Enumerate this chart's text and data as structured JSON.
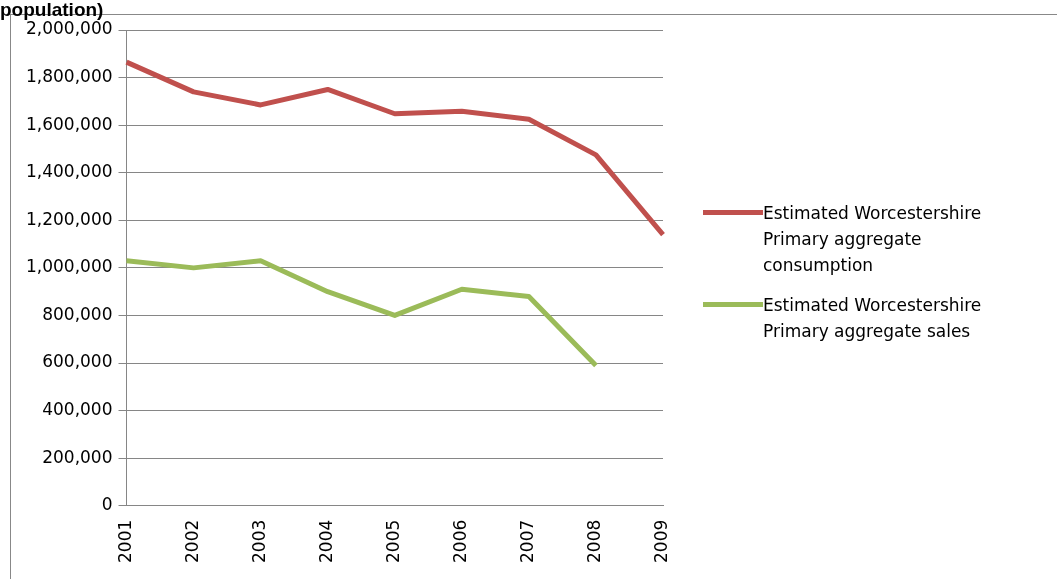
{
  "chart_data": {
    "type": "line",
    "title": "population)",
    "categories": [
      "2001",
      "2002",
      "2003",
      "2004",
      "2005",
      "2006",
      "2007",
      "2008",
      "2009"
    ],
    "series": [
      {
        "name": "Estimated Worcestershire Primary aggregate consumption",
        "color": "#c0504d",
        "values": [
          1865000,
          1740000,
          1685000,
          1750000,
          1648000,
          1658000,
          1625000,
          1475000,
          1140000
        ]
      },
      {
        "name": "Estimated Worcestershire Primary aggregate sales",
        "color": "#9bbb59",
        "values": [
          1030000,
          1000000,
          1030000,
          900000,
          800000,
          910000,
          880000,
          590000,
          null
        ]
      }
    ],
    "ylim": [
      0,
      2000000
    ],
    "yticks": [
      0,
      {
        "value": 200000,
        "label": "200,000"
      },
      {
        "value": 400000,
        "label": "400,000"
      },
      {
        "value": 600000,
        "label": "600,000"
      },
      {
        "value": 800000,
        "label": "800,000"
      },
      {
        "value": 1000000,
        "label": "1,000,000"
      },
      {
        "value": 1200000,
        "label": "1,200,000"
      },
      {
        "value": 1400000,
        "label": "1,400,000"
      },
      {
        "value": 1600000,
        "label": "1,600,000"
      },
      {
        "value": 1800000,
        "label": "1,800,000"
      },
      {
        "value": 2000000,
        "label": "2,000,000"
      }
    ],
    "grid": "y",
    "legend": "right",
    "marker": "none"
  }
}
